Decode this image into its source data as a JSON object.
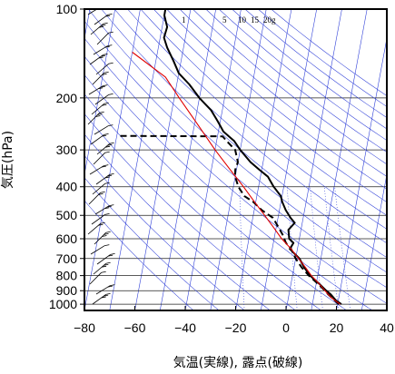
{
  "chart_data": {
    "type": "line",
    "chart_kind": "skew-T log-p thermodynamic diagram",
    "xlabel": "気温(実線), 露点(破線)",
    "ylabel": "気圧(hPa)",
    "xlim": [
      -80,
      40
    ],
    "ylim": [
      1050,
      100
    ],
    "y_scale": "log",
    "x_ticks": [
      "−80",
      "−60",
      "−40",
      "−20",
      "0",
      "20",
      "40"
    ],
    "x_tick_values": [
      -80,
      -60,
      -40,
      -20,
      0,
      20,
      40
    ],
    "y_ticks": [
      "100",
      "200",
      "300",
      "400",
      "500",
      "600",
      "700",
      "800",
      "900",
      "1000"
    ],
    "y_tick_values": [
      100,
      200,
      300,
      400,
      500,
      600,
      700,
      800,
      900,
      1000
    ],
    "grid": true,
    "mixing_ratio_labels": [
      "1",
      "5",
      "10",
      "15",
      "20g"
    ],
    "series": [
      {
        "role": "temperature",
        "style": "solid",
        "color": "#000000",
        "points": [
          [
            1000,
            21.5
          ],
          [
            970,
            19
          ],
          [
            925,
            16.5
          ],
          [
            900,
            14.5
          ],
          [
            850,
            11
          ],
          [
            800,
            7
          ],
          [
            750,
            4
          ],
          [
            700,
            1.5
          ],
          [
            650,
            -3
          ],
          [
            620,
            -2
          ],
          [
            600,
            -4
          ],
          [
            560,
            -5
          ],
          [
            530,
            -3
          ],
          [
            510,
            -5
          ],
          [
            480,
            -7.5
          ],
          [
            450,
            -9.5
          ],
          [
            430,
            -10.5
          ],
          [
            400,
            -14
          ],
          [
            370,
            -17
          ],
          [
            350,
            -21
          ],
          [
            330,
            -25
          ],
          [
            300,
            -30
          ],
          [
            280,
            -33
          ],
          [
            260,
            -38
          ],
          [
            240,
            -41
          ],
          [
            220,
            -44.5
          ],
          [
            200,
            -50
          ],
          [
            180,
            -55
          ],
          [
            165,
            -60
          ],
          [
            150,
            -63
          ],
          [
            135,
            -66.5
          ],
          [
            125,
            -68.5
          ],
          [
            115,
            -68
          ],
          [
            105,
            -70
          ],
          [
            100,
            -70
          ]
        ]
      },
      {
        "role": "dewpoint",
        "style": "dashed",
        "color": "#000000",
        "points": [
          [
            1000,
            20.5
          ],
          [
            970,
            18.5
          ],
          [
            925,
            15.5
          ],
          [
            900,
            14
          ],
          [
            850,
            10.5
          ],
          [
            800,
            6.5
          ],
          [
            750,
            3
          ],
          [
            700,
            0
          ],
          [
            650,
            -2.5
          ],
          [
            620,
            -5
          ],
          [
            580,
            -7
          ],
          [
            550,
            -9
          ],
          [
            510,
            -12
          ],
          [
            480,
            -17
          ],
          [
            450,
            -21
          ],
          [
            430,
            -25
          ],
          [
            400,
            -28
          ],
          [
            370,
            -30
          ],
          [
            350,
            -30.5
          ],
          [
            330,
            -30
          ],
          [
            300,
            -32
          ],
          [
            280,
            -36
          ],
          [
            270,
            -38
          ],
          [
            269,
            -80
          ]
        ]
      },
      {
        "role": "parcel path",
        "style": "solid",
        "color": "#e00000",
        "points": [
          [
            1000,
            21
          ],
          [
            950,
            17
          ],
          [
            900,
            14
          ],
          [
            850,
            11
          ],
          [
            800,
            7.5
          ],
          [
            750,
            4.5
          ],
          [
            700,
            1.2
          ],
          [
            650,
            -2.5
          ],
          [
            600,
            -7
          ],
          [
            550,
            -11
          ],
          [
            500,
            -15.5
          ],
          [
            450,
            -20.5
          ],
          [
            400,
            -26
          ],
          [
            350,
            -32.5
          ],
          [
            300,
            -40
          ],
          [
            250,
            -48
          ],
          [
            200,
            -58
          ],
          [
            170,
            -65
          ],
          [
            140,
            -80
          ]
        ]
      }
    ],
    "wind_barbs_x": -78,
    "wind_barbs_shown": true
  }
}
